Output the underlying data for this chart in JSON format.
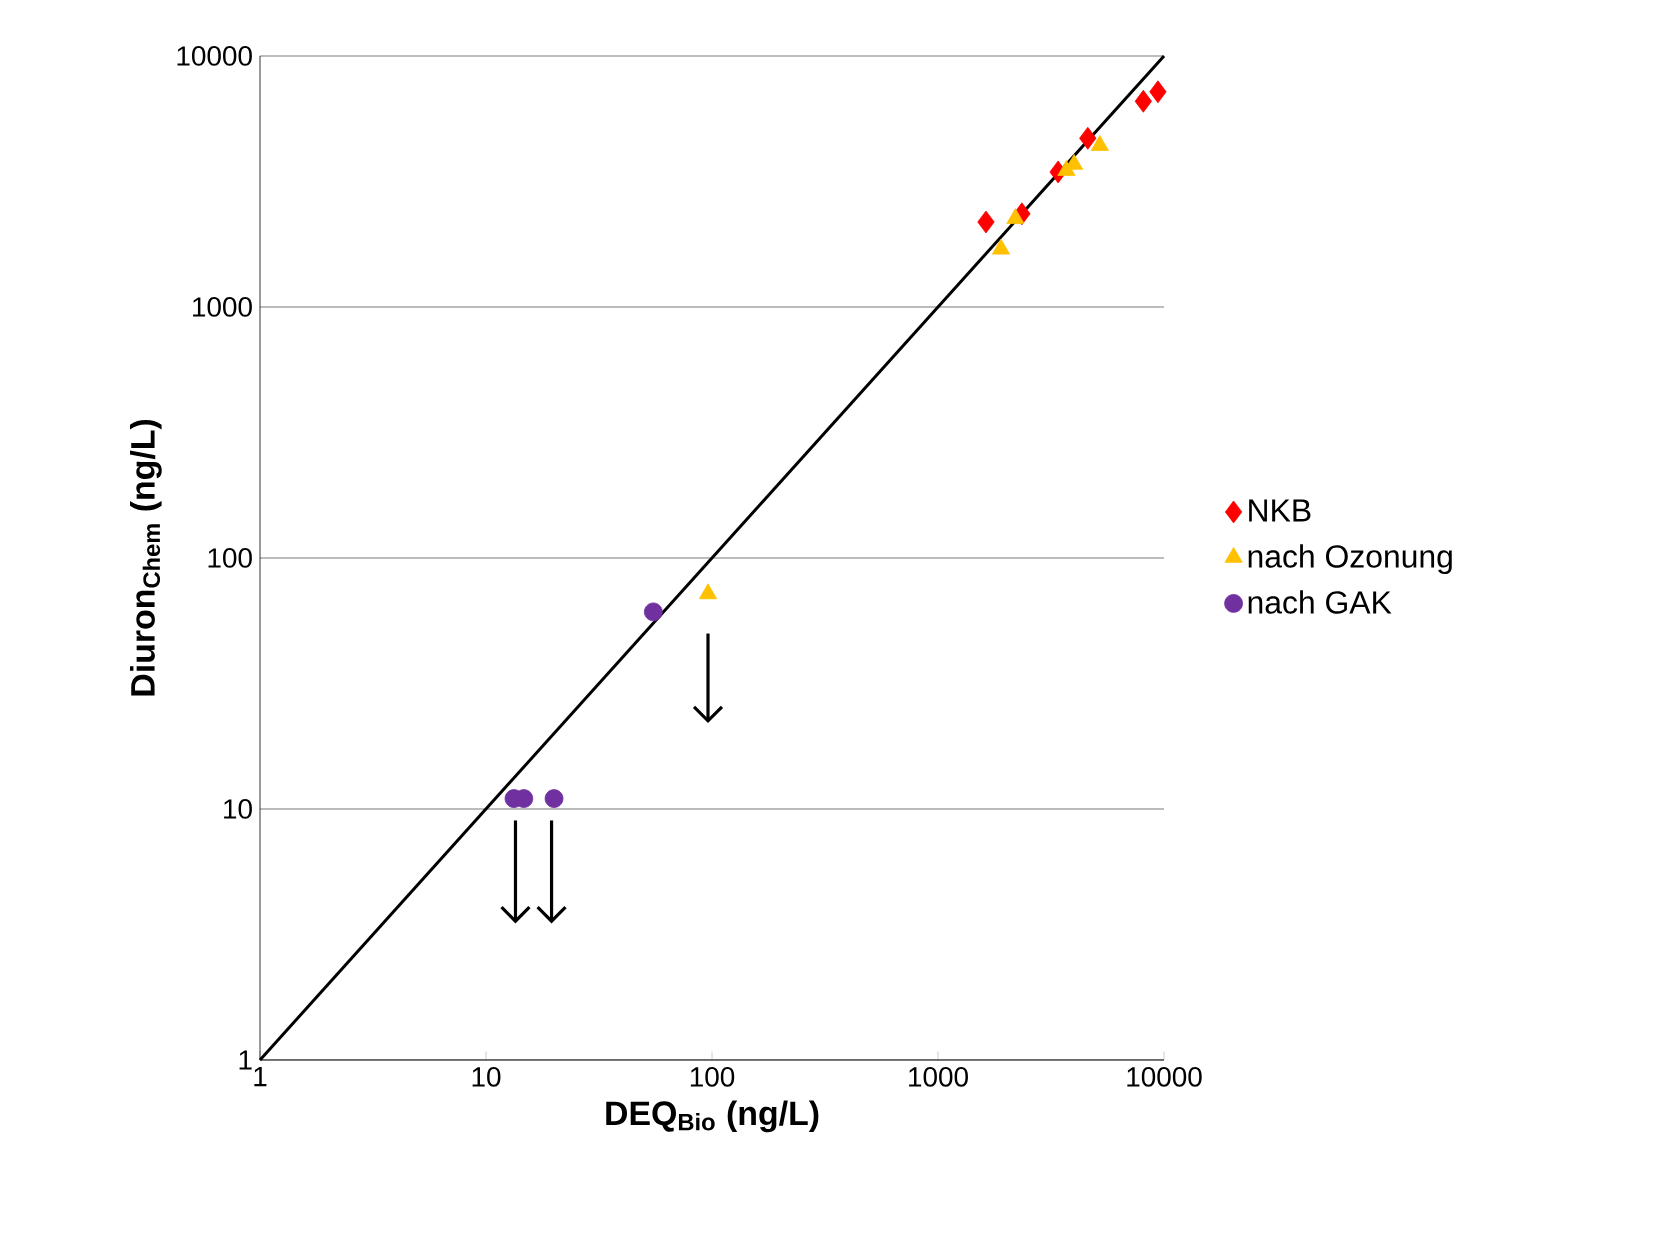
{
  "chart_data": {
    "type": "scatter",
    "xlabel": "**DEQ$_{Bio}$ (ng/L)**",
    "ylabel": "**Diuron$_{Chem}$ (ng/L)**",
    "log": "xy",
    "xlim": [
      1,
      10000
    ],
    "ylim": [
      1,
      10000
    ],
    "xticks": [
      1,
      10,
      100,
      1000,
      10000
    ],
    "yticks": [
      1,
      10,
      100,
      1000,
      10000
    ],
    "grid": "y",
    "legend": "right",
    "series": [
      {
        "name": "NKB",
        "color": "#ff0000",
        "marker": "diamond",
        "x": [
          1630,
          2350,
          3400,
          4600,
          8100,
          9400
        ],
        "values": [
          2180,
          2350,
          3450,
          4700,
          6600,
          7200
        ]
      },
      {
        "name": "nach Ozonung",
        "color": "#ffc000",
        "marker": "triangle",
        "x": [
          1900,
          2200,
          3700,
          4000,
          5200,
          96
        ],
        "values": [
          1700,
          2250,
          3500,
          3700,
          4400,
          72
        ]
      },
      {
        "name": "nach GAK",
        "color": "#7030a0",
        "marker": "circle",
        "x": [
          55,
          13.3,
          14.7,
          20
        ],
        "values": [
          61,
          11,
          11,
          11
        ]
      },
      {
        "type": "line",
        "color": "#000000",
        "x": [
          1,
          10000
        ],
        "values": [
          1,
          10000
        ]
      }
    ]
  }
}
